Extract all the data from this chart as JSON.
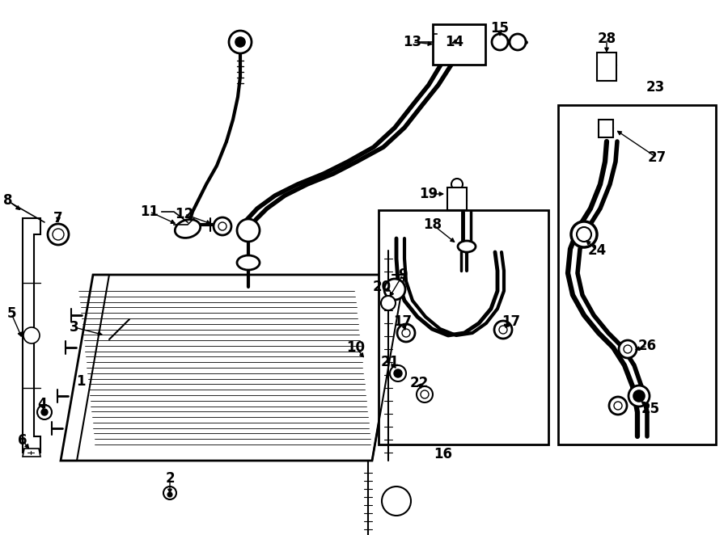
{
  "bg_color": "#ffffff",
  "line_color": "#000000",
  "fig_width": 9.0,
  "fig_height": 6.62,
  "dpi": 100
}
